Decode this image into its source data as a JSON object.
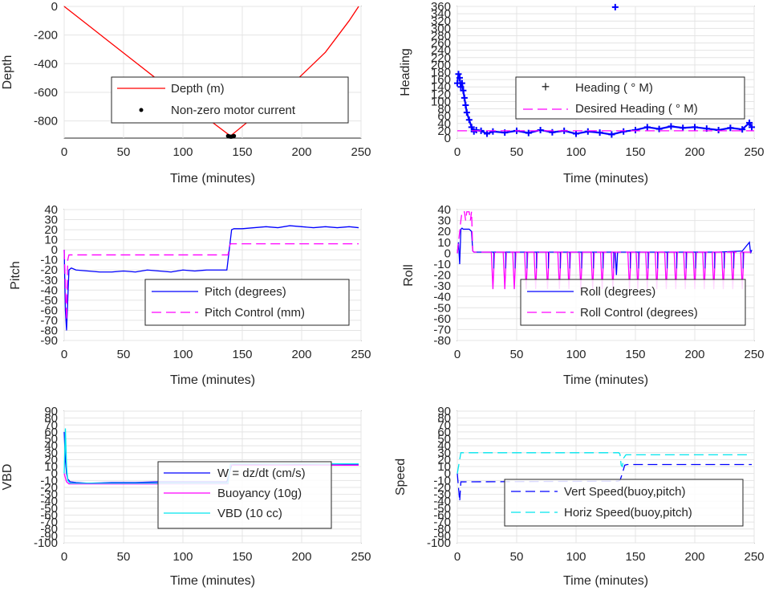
{
  "colors": {
    "red": "#ff0000",
    "blue": "#0000ff",
    "magenta": "#ff00ff",
    "cyan": "#00e5ee",
    "black": "#000000"
  },
  "chart_data": [
    {
      "id": "depth",
      "type": "line",
      "xlabel": "Time (minutes)",
      "ylabel": "Depth",
      "xlim": [
        0,
        250
      ],
      "ylim": [
        -920,
        0
      ],
      "xticks": [
        0,
        50,
        100,
        150,
        200,
        250
      ],
      "yticks": [
        0,
        -200,
        -400,
        -600,
        -800
      ],
      "grid": true,
      "legend_position": "center",
      "series": [
        {
          "name": "Depth (m)",
          "color": "#ff0000",
          "style": "solid",
          "x": [
            0,
            20,
            40,
            60,
            80,
            100,
            120,
            140,
            160,
            180,
            200,
            220,
            240,
            248
          ],
          "y": [
            0,
            -130,
            -260,
            -390,
            -520,
            -650,
            -780,
            -905,
            -770,
            -630,
            -480,
            -320,
            -100,
            0
          ]
        },
        {
          "name": "Non-zero motor current",
          "color": "#000000",
          "style": "dots",
          "x": [
            138,
            139,
            140,
            141,
            142,
            143
          ],
          "y": [
            -905,
            -908,
            -910,
            -910,
            -908,
            -905
          ]
        }
      ]
    },
    {
      "id": "heading",
      "type": "line",
      "xlabel": "Time (minutes)",
      "ylabel": "Heading",
      "xlim": [
        0,
        250
      ],
      "ylim": [
        0,
        360
      ],
      "xticks": [
        0,
        50,
        100,
        150,
        200,
        250
      ],
      "yticks": [
        0,
        20,
        40,
        60,
        80,
        100,
        120,
        140,
        160,
        180,
        200,
        220,
        240,
        260,
        280,
        300,
        320,
        340,
        360
      ],
      "grid": true,
      "legend_position": "center-right",
      "series": [
        {
          "name": "Heading ( ° M)",
          "color": "#0000ff",
          "style": "plus",
          "x": [
            0,
            1,
            2,
            3,
            4,
            5,
            6,
            7,
            8,
            10,
            12,
            14,
            16,
            20,
            25,
            30,
            40,
            50,
            60,
            70,
            80,
            90,
            100,
            110,
            120,
            130,
            133,
            140,
            150,
            160,
            170,
            180,
            190,
            200,
            210,
            220,
            230,
            240,
            246,
            248
          ],
          "y": [
            150,
            175,
            165,
            140,
            150,
            130,
            110,
            90,
            70,
            50,
            30,
            18,
            22,
            20,
            12,
            18,
            15,
            20,
            14,
            22,
            16,
            20,
            12,
            18,
            15,
            10,
            358,
            18,
            22,
            30,
            25,
            32,
            28,
            30,
            26,
            22,
            28,
            24,
            42,
            30
          ]
        },
        {
          "name": "Desired Heading ( ° M)",
          "color": "#ff00ff",
          "style": "dash",
          "x": [
            0,
            250
          ],
          "y": [
            20,
            20
          ]
        }
      ]
    },
    {
      "id": "pitch",
      "type": "line",
      "xlabel": "Time (minutes)",
      "ylabel": "Pitch",
      "xlim": [
        0,
        250
      ],
      "ylim": [
        -90,
        40
      ],
      "xticks": [
        0,
        50,
        100,
        150,
        200,
        250
      ],
      "yticks": [
        40,
        30,
        20,
        10,
        0,
        -10,
        -20,
        -30,
        -40,
        -50,
        -60,
        -70,
        -80,
        -90
      ],
      "grid": true,
      "legend_position": "bottom-right",
      "series": [
        {
          "name": "Pitch (degrees)",
          "color": "#0000ff",
          "style": "solid",
          "x": [
            0,
            1,
            2,
            3,
            4,
            6,
            10,
            20,
            30,
            40,
            50,
            60,
            70,
            80,
            90,
            100,
            110,
            120,
            130,
            137,
            139,
            141,
            143,
            150,
            160,
            170,
            180,
            190,
            200,
            210,
            220,
            230,
            240,
            248
          ],
          "y": [
            0,
            -60,
            -80,
            -50,
            -20,
            -18,
            -20,
            -21,
            -22,
            -22,
            -21,
            -22,
            -20,
            -21,
            -22,
            -20,
            -21,
            -20,
            -20,
            -20,
            0,
            20,
            21,
            21,
            22,
            23,
            22,
            24,
            23,
            22,
            23,
            22,
            23,
            22
          ]
        },
        {
          "name": "Pitch Control (mm)",
          "color": "#ff00ff",
          "style": "dash",
          "x": [
            0,
            2,
            3,
            4,
            6,
            138,
            139,
            140,
            248
          ],
          "y": [
            0,
            -70,
            -10,
            -5,
            -5,
            -5,
            3,
            6,
            6
          ]
        }
      ]
    },
    {
      "id": "roll",
      "type": "line",
      "xlabel": "Time (minutes)",
      "ylabel": "Roll",
      "xlim": [
        0,
        250
      ],
      "ylim": [
        -80,
        40
      ],
      "xticks": [
        0,
        50,
        100,
        150,
        200,
        250
      ],
      "yticks": [
        40,
        30,
        20,
        10,
        0,
        -10,
        -20,
        -30,
        -40,
        -50,
        -60,
        -70,
        -80
      ],
      "grid": true,
      "legend_position": "bottom-right",
      "series": [
        {
          "name": "Roll (degrees)",
          "color": "#0000ff",
          "style": "solid",
          "x": [
            0,
            1,
            2,
            3,
            4,
            5,
            6,
            8,
            10,
            12,
            13,
            14,
            20,
            30,
            50,
            80,
            100,
            120,
            133,
            134,
            135,
            150,
            180,
            200,
            220,
            240,
            246,
            247,
            248
          ],
          "y": [
            0,
            10,
            -10,
            22,
            23,
            22,
            22,
            22,
            22,
            20,
            2,
            1,
            1,
            1,
            1,
            1,
            1,
            1,
            1,
            -20,
            1,
            1,
            1,
            1,
            1,
            2,
            10,
            0,
            3
          ]
        },
        {
          "name": "Roll Control (degrees)",
          "color": "#ff00ff",
          "style": "dash",
          "x": [
            0,
            3,
            4,
            5,
            6,
            7,
            8,
            9,
            10,
            11,
            12,
            13,
            14,
            248
          ],
          "y": [
            0,
            30,
            38,
            38,
            38,
            30,
            38,
            38,
            38,
            30,
            38,
            2,
            1,
            1
          ]
        }
      ],
      "spikes_x": [
        30,
        40,
        48,
        58,
        66,
        76,
        86,
        94,
        104,
        114,
        122,
        131,
        145,
        152,
        160,
        168,
        176,
        184,
        192,
        200,
        208,
        216,
        224,
        232,
        240
      ],
      "spike_depth": -33
    },
    {
      "id": "vbd",
      "type": "line",
      "xlabel": "Time (minutes)",
      "ylabel": "VBD",
      "xlim": [
        0,
        250
      ],
      "ylim": [
        -100,
        90
      ],
      "xticks": [
        0,
        50,
        100,
        150,
        200,
        250
      ],
      "yticks": [
        90,
        80,
        70,
        60,
        50,
        40,
        30,
        20,
        10,
        0,
        -10,
        -20,
        -30,
        -40,
        -50,
        -60,
        -70,
        -80,
        -90,
        -100
      ],
      "grid": true,
      "legend_position": "center-right",
      "series": [
        {
          "name": "W = dz/dt (cm/s)",
          "color": "#0000ff",
          "style": "solid",
          "x": [
            0,
            1,
            2,
            3,
            5,
            10,
            20,
            40,
            60,
            80,
            100,
            120,
            137,
            139,
            141,
            143,
            160,
            180,
            200,
            220,
            240,
            248
          ],
          "y": [
            60,
            20,
            0,
            -8,
            -12,
            -13,
            -14,
            -13,
            -13,
            -12,
            -12,
            -12,
            -12,
            0,
            12,
            13,
            13,
            14,
            13,
            14,
            13,
            13
          ]
        },
        {
          "name": "Buoyancy (10g)",
          "color": "#ff00ff",
          "style": "solid",
          "x": [
            0,
            2,
            4,
            6,
            138,
            140,
            248
          ],
          "y": [
            0,
            -12,
            -15,
            -15,
            -15,
            12,
            12
          ]
        },
        {
          "name": "VBD (10 cc)",
          "color": "#00e5ee",
          "style": "solid",
          "x": [
            0,
            1,
            2,
            3,
            5,
            138,
            140,
            248
          ],
          "y": [
            0,
            65,
            10,
            -10,
            -14,
            -14,
            14,
            14
          ]
        }
      ]
    },
    {
      "id": "speed",
      "type": "line",
      "xlabel": "Time (minutes)",
      "ylabel": "Speed",
      "xlim": [
        0,
        250
      ],
      "ylim": [
        -100,
        90
      ],
      "xticks": [
        0,
        50,
        100,
        150,
        200,
        250
      ],
      "yticks": [
        90,
        80,
        70,
        60,
        50,
        40,
        30,
        20,
        10,
        0,
        -10,
        -20,
        -30,
        -40,
        -50,
        -60,
        -70,
        -80,
        -90,
        -100
      ],
      "grid": true,
      "legend_position": "center-right",
      "series": [
        {
          "name": "Vert Speed(buoy,pitch)",
          "color": "#0000ff",
          "style": "dash",
          "x": [
            0,
            2,
            3,
            4,
            6,
            135,
            137,
            139,
            141,
            143,
            160,
            180,
            200,
            220,
            240,
            248
          ],
          "y": [
            0,
            -40,
            -12,
            -12,
            -12,
            -11,
            -10,
            0,
            12,
            13,
            13,
            13,
            13,
            13,
            13,
            13
          ]
        },
        {
          "name": "Horiz Speed(buoy,pitch)",
          "color": "#00e5ee",
          "style": "dash",
          "x": [
            0,
            2,
            3,
            4,
            6,
            136,
            137,
            138,
            139,
            140,
            142,
            144,
            160,
            248
          ],
          "y": [
            0,
            20,
            30,
            30,
            30,
            30,
            28,
            12,
            10,
            22,
            27,
            27,
            27,
            27
          ]
        }
      ]
    }
  ]
}
